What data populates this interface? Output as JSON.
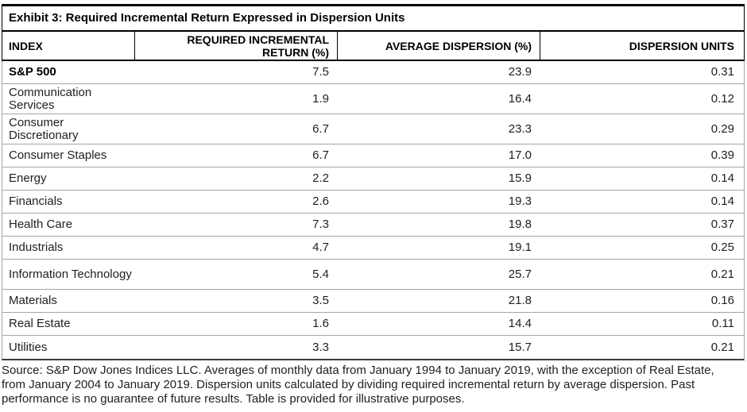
{
  "exhibit": {
    "title": "Exhibit 3: Required Incremental Return Expressed in Dispersion Units"
  },
  "table": {
    "headers": {
      "index": "INDEX",
      "required_incremental_return": "REQUIRED INCREMENTAL RETURN (%)",
      "average_dispersion": "AVERAGE DISPERSION (%)",
      "dispersion_units": "DISPERSION UNITS"
    },
    "rows": [
      {
        "index": "S&P 500",
        "required_incremental_return": "7.5",
        "average_dispersion": "23.9",
        "dispersion_units": "0.31"
      },
      {
        "index": "Communication Services",
        "required_incremental_return": "1.9",
        "average_dispersion": "16.4",
        "dispersion_units": "0.12"
      },
      {
        "index": "Consumer Discretionary",
        "required_incremental_return": "6.7",
        "average_dispersion": "23.3",
        "dispersion_units": "0.29"
      },
      {
        "index": "Consumer Staples",
        "required_incremental_return": "6.7",
        "average_dispersion": "17.0",
        "dispersion_units": "0.39"
      },
      {
        "index": "Energy",
        "required_incremental_return": "2.2",
        "average_dispersion": "15.9",
        "dispersion_units": "0.14"
      },
      {
        "index": "Financials",
        "required_incremental_return": "2.6",
        "average_dispersion": "19.3",
        "dispersion_units": "0.14"
      },
      {
        "index": "Health Care",
        "required_incremental_return": "7.3",
        "average_dispersion": "19.8",
        "dispersion_units": "0.37"
      },
      {
        "index": "Industrials",
        "required_incremental_return": "4.7",
        "average_dispersion": "19.1",
        "dispersion_units": "0.25"
      },
      {
        "index": "Information Technology",
        "required_incremental_return": "5.4",
        "average_dispersion": "25.7",
        "dispersion_units": "0.21"
      },
      {
        "index": "Materials",
        "required_incremental_return": "3.5",
        "average_dispersion": "21.8",
        "dispersion_units": "0.16"
      },
      {
        "index": "Real Estate",
        "required_incremental_return": "1.6",
        "average_dispersion": "14.4",
        "dispersion_units": "0.11"
      },
      {
        "index": "Utilities",
        "required_incremental_return": "3.3",
        "average_dispersion": "15.7",
        "dispersion_units": "0.21"
      }
    ]
  },
  "footnote": "Source: S&P Dow Jones Indices LLC. Averages of monthly data from January 1994 to January 2019, with the exception of Real Estate, from January 2004 to January 2019. Dispersion units calculated by dividing required incremental return by average dispersion. Past performance is no guarantee of future results. Table is provided for illustrative purposes.",
  "colors": {
    "rule_dark": "#000000",
    "rule_bottom": "#3c3c3c",
    "row_divider": "#a6a6a6",
    "text": "#212121"
  }
}
